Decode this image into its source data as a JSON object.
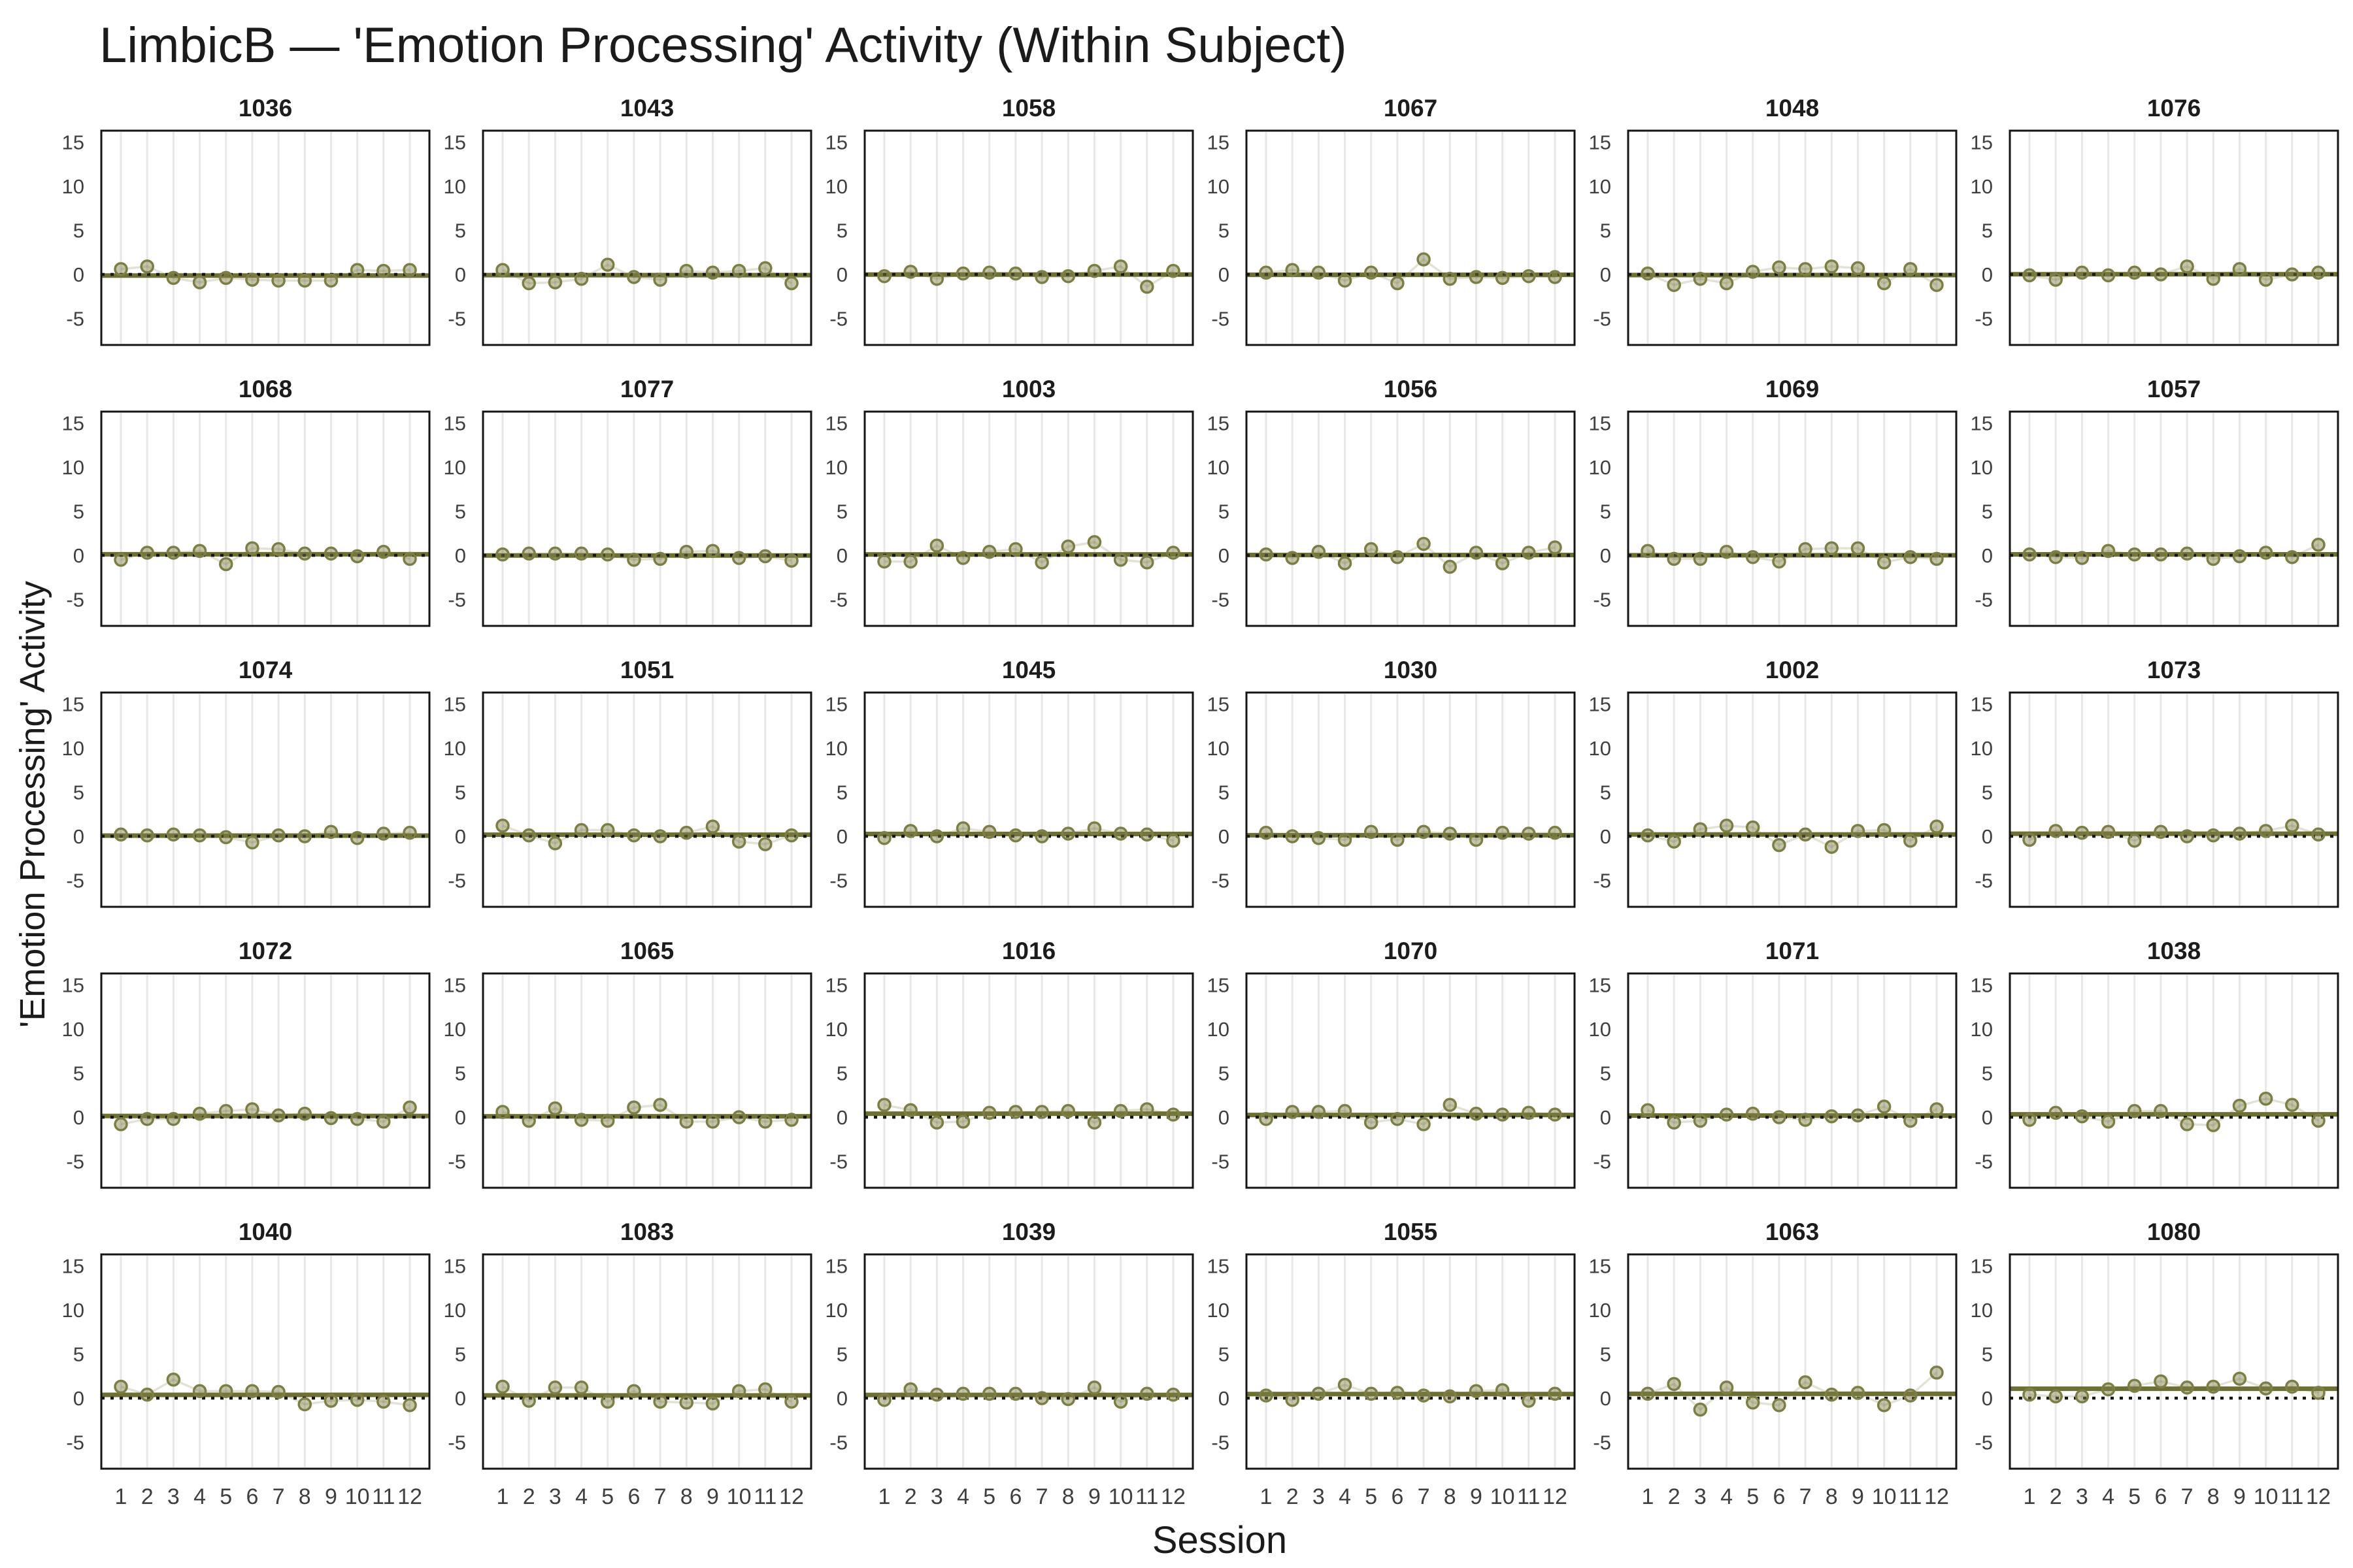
{
  "title": "LimbicB — 'Emotion Processing' Activity (Within Subject)",
  "y_axis_label": "'Emotion Processing' Activity",
  "x_axis_label": "Session",
  "chart_data": {
    "type": "scatter",
    "title": "LimbicB — 'Emotion Processing' Activity (Within Subject)",
    "xlabel": "Session",
    "ylabel": "'Emotion Processing' Activity",
    "x": [
      1,
      2,
      3,
      4,
      5,
      6,
      7,
      8,
      9,
      10,
      11,
      12
    ],
    "x_ticks": [
      "1",
      "2",
      "3",
      "4",
      "5",
      "6",
      "7",
      "8",
      "9",
      "10",
      "11",
      "12"
    ],
    "y_ticks": [
      15,
      10,
      5,
      0,
      -5
    ],
    "ylim": [
      -8.2,
      16.3
    ],
    "grid": "vertical-only",
    "reference_line_y": 0,
    "trend": "flat-line-at-panel-mean",
    "facets_per_row": 6,
    "legend": "none",
    "colors": {
      "point_stroke": "#7c7e45",
      "point_fill_rgba": "rgba(124,126,69,0.45)",
      "connector_rgba": "rgba(124,126,69,0.22)",
      "trend_line": "#6e7033",
      "reference_dotted": "#161616",
      "gridline": "#e7e7e7",
      "panel_border": "#141414",
      "facet_title": "#1c1c1c",
      "tick_label": "#3f3f3f",
      "title_text": "#1b1b1b"
    },
    "panels": [
      {
        "id": "1036",
        "values": [
          0.6,
          0.9,
          -0.4,
          -0.9,
          -0.4,
          -0.6,
          -0.7,
          -0.7,
          -0.7,
          0.5,
          0.4,
          0.5
        ]
      },
      {
        "id": "1043",
        "values": [
          0.5,
          -1.0,
          -0.9,
          -0.5,
          1.1,
          -0.3,
          -0.6,
          0.4,
          0.2,
          0.4,
          0.7,
          -1.0
        ]
      },
      {
        "id": "1058",
        "values": [
          -0.2,
          0.3,
          -0.5,
          0.1,
          0.2,
          0.1,
          -0.3,
          -0.2,
          0.4,
          0.9,
          -1.4,
          0.4
        ]
      },
      {
        "id": "1067",
        "values": [
          0.2,
          0.5,
          0.2,
          -0.7,
          0.2,
          -1.0,
          1.7,
          -0.5,
          -0.3,
          -0.4,
          -0.2,
          -0.3
        ]
      },
      {
        "id": "1048",
        "values": [
          0.1,
          -1.2,
          -0.5,
          -1.0,
          0.3,
          0.8,
          0.6,
          0.9,
          0.7,
          -1.0,
          0.6,
          -1.2
        ]
      },
      {
        "id": "1076",
        "values": [
          -0.1,
          -0.6,
          0.2,
          -0.1,
          0.2,
          0.0,
          0.9,
          -0.5,
          0.6,
          -0.6,
          0.0,
          0.2
        ]
      },
      {
        "id": "1068",
        "values": [
          -0.5,
          0.3,
          0.3,
          0.5,
          -1.0,
          0.8,
          0.7,
          0.2,
          0.2,
          -0.1,
          0.4,
          -0.4
        ]
      },
      {
        "id": "1077",
        "values": [
          0.1,
          0.2,
          0.2,
          0.2,
          0.1,
          -0.5,
          -0.4,
          0.4,
          0.5,
          -0.3,
          -0.1,
          -0.6
        ]
      },
      {
        "id": "1003",
        "values": [
          -0.7,
          -0.7,
          1.1,
          -0.3,
          0.4,
          0.7,
          -0.8,
          1.0,
          1.5,
          -0.5,
          -0.8,
          0.3
        ]
      },
      {
        "id": "1056",
        "values": [
          0.1,
          -0.3,
          0.4,
          -0.9,
          0.7,
          -0.2,
          1.3,
          -1.3,
          0.3,
          -0.9,
          0.3,
          0.9
        ]
      },
      {
        "id": "1069",
        "values": [
          0.5,
          -0.4,
          -0.4,
          0.4,
          -0.2,
          -0.7,
          0.7,
          0.8,
          0.8,
          -0.8,
          -0.2,
          -0.4
        ]
      },
      {
        "id": "1057",
        "values": [
          0.1,
          -0.2,
          -0.3,
          0.5,
          0.1,
          0.1,
          0.2,
          -0.4,
          -0.1,
          0.3,
          -0.2,
          1.2
        ]
      },
      {
        "id": "1074",
        "values": [
          0.2,
          0.1,
          0.2,
          0.1,
          -0.1,
          -0.7,
          0.1,
          0.0,
          0.5,
          -0.2,
          0.3,
          0.4
        ]
      },
      {
        "id": "1051",
        "values": [
          1.2,
          0.1,
          -0.8,
          0.7,
          0.7,
          0.1,
          0.0,
          0.4,
          1.1,
          -0.6,
          -0.9,
          0.1
        ]
      },
      {
        "id": "1045",
        "values": [
          -0.2,
          0.6,
          0.0,
          0.9,
          0.5,
          0.1,
          0.0,
          0.3,
          0.9,
          0.3,
          0.2,
          -0.5
        ]
      },
      {
        "id": "1030",
        "values": [
          0.4,
          0.0,
          -0.2,
          -0.4,
          0.5,
          -0.4,
          0.5,
          0.3,
          -0.4,
          0.4,
          0.3,
          0.4
        ]
      },
      {
        "id": "1002",
        "values": [
          0.1,
          -0.6,
          0.8,
          1.2,
          1.0,
          -1.0,
          0.2,
          -1.2,
          0.6,
          0.7,
          -0.5,
          1.1
        ]
      },
      {
        "id": "1073",
        "values": [
          -0.4,
          0.6,
          0.4,
          0.5,
          -0.5,
          0.5,
          0.0,
          0.1,
          0.3,
          0.6,
          1.2,
          0.2
        ]
      },
      {
        "id": "1072",
        "values": [
          -0.8,
          -0.2,
          -0.2,
          0.4,
          0.7,
          0.9,
          0.2,
          0.4,
          -0.1,
          -0.2,
          -0.5,
          1.1
        ]
      },
      {
        "id": "1065",
        "values": [
          0.6,
          -0.4,
          1.0,
          -0.3,
          -0.4,
          1.1,
          1.4,
          -0.5,
          -0.5,
          0.0,
          -0.5,
          -0.3
        ]
      },
      {
        "id": "1016",
        "values": [
          1.4,
          0.8,
          -0.6,
          -0.5,
          0.5,
          0.6,
          0.6,
          0.7,
          -0.6,
          0.7,
          0.9,
          0.3
        ]
      },
      {
        "id": "1070",
        "values": [
          -0.2,
          0.6,
          0.6,
          0.7,
          -0.6,
          -0.2,
          -0.8,
          1.4,
          0.4,
          0.3,
          0.5,
          0.3
        ]
      },
      {
        "id": "1071",
        "values": [
          0.8,
          -0.6,
          -0.4,
          0.3,
          0.4,
          0.0,
          -0.3,
          0.1,
          0.2,
          1.2,
          -0.4,
          0.9
        ]
      },
      {
        "id": "1038",
        "values": [
          -0.3,
          0.5,
          0.1,
          -0.5,
          0.7,
          0.7,
          -0.8,
          -0.9,
          1.3,
          2.1,
          1.4,
          -0.4
        ]
      },
      {
        "id": "1040",
        "values": [
          1.3,
          0.4,
          2.1,
          0.8,
          0.8,
          0.8,
          0.7,
          -0.7,
          -0.3,
          -0.2,
          -0.4,
          -0.8
        ]
      },
      {
        "id": "1083",
        "values": [
          1.3,
          -0.3,
          1.2,
          1.2,
          -0.4,
          0.8,
          -0.4,
          -0.5,
          -0.6,
          0.8,
          1.0,
          -0.4
        ]
      },
      {
        "id": "1039",
        "values": [
          -0.2,
          1.0,
          0.4,
          0.5,
          0.5,
          0.5,
          0.0,
          -0.1,
          1.2,
          -0.4,
          0.5,
          0.4
        ]
      },
      {
        "id": "1055",
        "values": [
          0.3,
          -0.2,
          0.5,
          1.5,
          0.5,
          0.6,
          0.3,
          0.2,
          0.8,
          0.9,
          -0.3,
          0.5
        ]
      },
      {
        "id": "1063",
        "values": [
          0.5,
          1.6,
          -1.3,
          1.2,
          -0.5,
          -0.8,
          1.8,
          0.4,
          0.6,
          -0.8,
          0.3,
          2.9
        ]
      },
      {
        "id": "1080",
        "values": [
          0.4,
          0.2,
          0.2,
          1.0,
          1.4,
          1.9,
          1.2,
          1.3,
          2.2,
          1.1,
          1.3,
          0.6
        ]
      }
    ]
  }
}
